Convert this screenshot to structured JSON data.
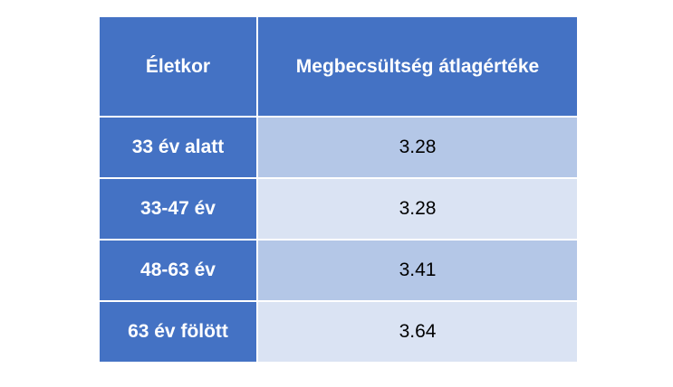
{
  "table": {
    "header": [
      "Életkor",
      "Megbecsültség átlagértéke"
    ],
    "rows": [
      [
        "33 év alatt",
        "3.28"
      ],
      [
        "33-47 év",
        "3.28"
      ],
      [
        "48-63 év",
        "3.41"
      ],
      [
        "63 év fölött",
        "3.64"
      ]
    ]
  }
}
